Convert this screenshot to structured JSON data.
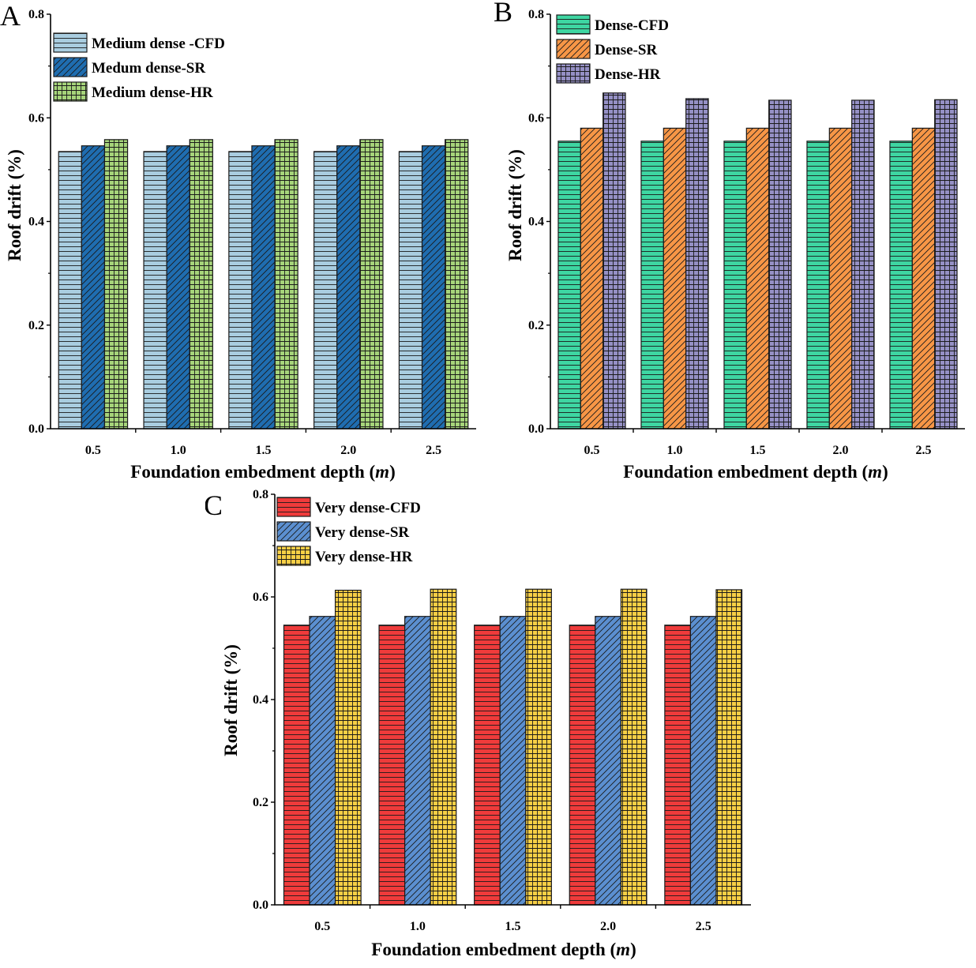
{
  "chart_data": [
    {
      "id": "A",
      "panel_label": "A",
      "type": "bar",
      "categories": [
        "0.5",
        "1.0",
        "1.5",
        "2.0",
        "2.5"
      ],
      "xlabel": "Foundation embedment depth (",
      "xlabel_unit": "m",
      "xlabel_close": ")",
      "ylabel": "Roof drift (%)",
      "ylim": [
        0,
        0.8
      ],
      "yticks": [
        "0.0",
        "0.2",
        "0.4",
        "0.6",
        "0.8"
      ],
      "legend_position": "top-left",
      "series": [
        {
          "name": "Medium dense -CFD",
          "values": [
            0.535,
            0.535,
            0.535,
            0.535,
            0.535
          ],
          "color": "#a9cde0",
          "pattern": "hlines"
        },
        {
          "name": "Medum dense-SR",
          "values": [
            0.546,
            0.546,
            0.546,
            0.546,
            0.546
          ],
          "color": "#1f6db0",
          "pattern": "diag"
        },
        {
          "name": "Medium dense-HR",
          "values": [
            0.558,
            0.558,
            0.558,
            0.558,
            0.558
          ],
          "color": "#a6d47a",
          "pattern": "grid"
        }
      ]
    },
    {
      "id": "B",
      "panel_label": "B",
      "type": "bar",
      "categories": [
        "0.5",
        "1.0",
        "1.5",
        "2.0",
        "2.5"
      ],
      "xlabel": "Foundation embedment depth (",
      "xlabel_unit": "m",
      "xlabel_close": ")",
      "ylabel": "Roof drift (%)",
      "ylim": [
        0,
        0.8
      ],
      "yticks": [
        "0.0",
        "0.2",
        "0.4",
        "0.6",
        "0.8"
      ],
      "legend_position": "top-left",
      "series": [
        {
          "name": "Dense-CFD",
          "values": [
            0.555,
            0.555,
            0.555,
            0.555,
            0.555
          ],
          "color": "#3ed6a2",
          "pattern": "hlines"
        },
        {
          "name": "Dense-SR",
          "values": [
            0.58,
            0.58,
            0.58,
            0.58,
            0.58
          ],
          "color": "#f79646",
          "pattern": "diag"
        },
        {
          "name": "Dense-HR",
          "values": [
            0.648,
            0.637,
            0.634,
            0.634,
            0.635
          ],
          "color": "#9590c5",
          "pattern": "grid"
        }
      ]
    },
    {
      "id": "C",
      "panel_label": "C",
      "type": "bar",
      "categories": [
        "0.5",
        "1.0",
        "1.5",
        "2.0",
        "2.5"
      ],
      "xlabel": "Foundation embedment depth (",
      "xlabel_unit": "m",
      "xlabel_close": ")",
      "ylabel": "Roof drift (%)",
      "ylim": [
        0,
        0.8
      ],
      "yticks": [
        "0.0",
        "0.2",
        "0.4",
        "0.6",
        "0.8"
      ],
      "legend_position": "top-left",
      "series": [
        {
          "name": "Very dense-CFD",
          "values": [
            0.545,
            0.545,
            0.545,
            0.545,
            0.545
          ],
          "color": "#ef3b3b",
          "pattern": "hlines"
        },
        {
          "name": "Very dense-SR",
          "values": [
            0.562,
            0.562,
            0.562,
            0.562,
            0.562
          ],
          "color": "#5b8fd0",
          "pattern": "diag"
        },
        {
          "name": "Very dense-HR",
          "values": [
            0.613,
            0.615,
            0.615,
            0.615,
            0.614
          ],
          "color": "#f7cf45",
          "pattern": "grid"
        }
      ]
    }
  ]
}
